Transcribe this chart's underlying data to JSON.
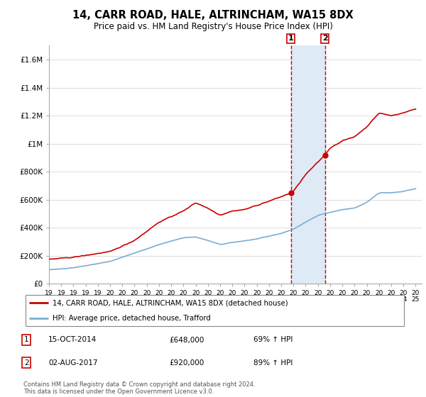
{
  "title": "14, CARR ROAD, HALE, ALTRINCHAM, WA15 8DX",
  "subtitle": "Price paid vs. HM Land Registry's House Price Index (HPI)",
  "legend_line1": "14, CARR ROAD, HALE, ALTRINCHAM, WA15 8DX (detached house)",
  "legend_line2": "HPI: Average price, detached house, Trafford",
  "annotation1_date": "15-OCT-2014",
  "annotation1_price": "£648,000",
  "annotation1_hpi": "69% ↑ HPI",
  "annotation1_year": 2014.79,
  "annotation1_value": 648000,
  "annotation2_date": "02-AUG-2017",
  "annotation2_price": "£920,000",
  "annotation2_hpi": "89% ↑ HPI",
  "annotation2_year": 2017.58,
  "annotation2_value": 920000,
  "house_color": "#cc0000",
  "hpi_color": "#7aadd4",
  "shaded_color": "#deeaf5",
  "vline_color": "#cc0000",
  "footer": "Contains HM Land Registry data © Crown copyright and database right 2024.\nThis data is licensed under the Open Government Licence v3.0.",
  "ylim": [
    0,
    1700000
  ],
  "yticks": [
    0,
    200000,
    400000,
    600000,
    800000,
    1000000,
    1200000,
    1400000,
    1600000
  ],
  "ytick_labels": [
    "£0",
    "£200K",
    "£400K",
    "£600K",
    "£800K",
    "£1M",
    "£1.2M",
    "£1.4M",
    "£1.6M"
  ],
  "xstart": 1995,
  "xend": 2025.5
}
